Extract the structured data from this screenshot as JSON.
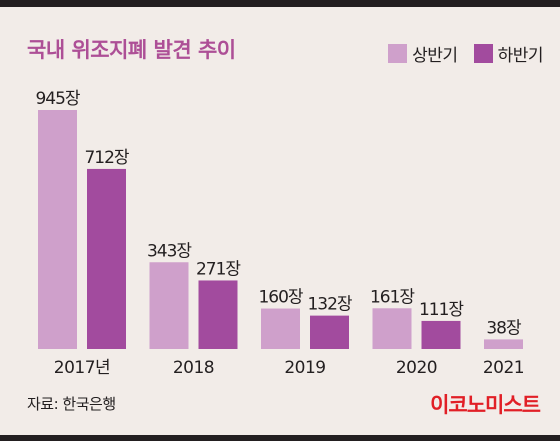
{
  "colors": {
    "title": "#ad4f96",
    "first_half": "#cfa0cb",
    "second_half": "#a24b9e",
    "text": "#231f20",
    "brand": "#e11f26"
  },
  "legend": {
    "first_half": "상반기",
    "second_half": "하반기"
  },
  "source": "자료: 한국은행",
  "brand": "이코노미스트",
  "chart_data": {
    "type": "bar",
    "title": "국내 위조지폐 발견 추이",
    "categories": [
      "2017년",
      "2018",
      "2019",
      "2020",
      "2021"
    ],
    "unit": "장",
    "series": [
      {
        "name": "상반기",
        "values": [
          945,
          343,
          160,
          161,
          38
        ]
      },
      {
        "name": "하반기",
        "values": [
          712,
          271,
          132,
          111,
          null
        ]
      }
    ],
    "ylim": [
      0,
      945
    ],
    "grid": false,
    "legend_position": "top-right"
  }
}
